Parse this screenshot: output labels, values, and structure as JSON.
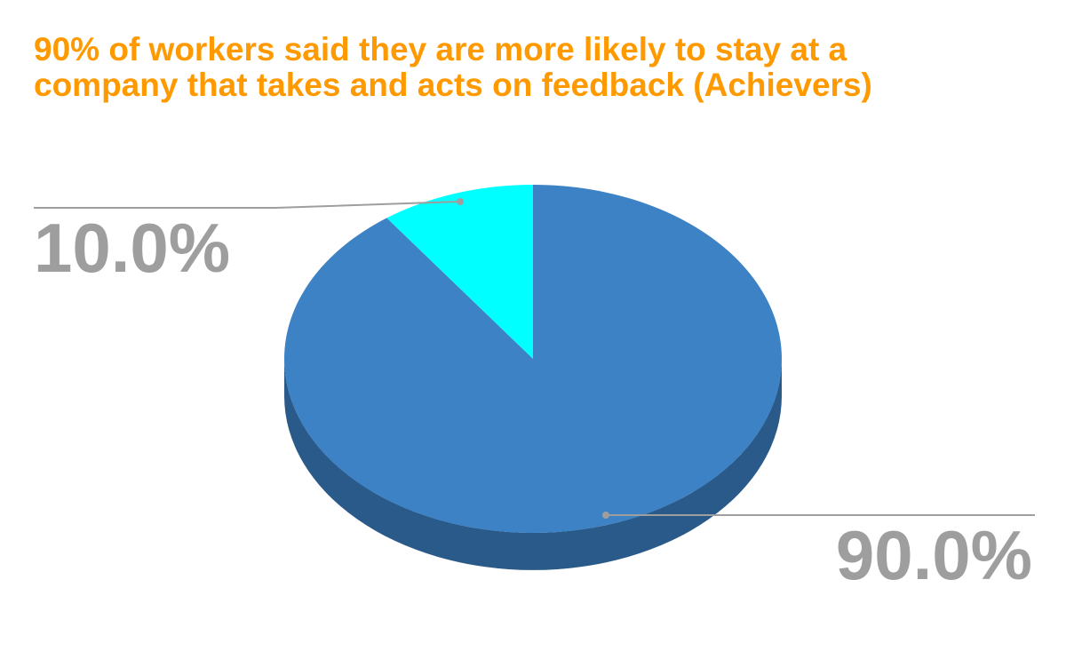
{
  "chart_data": {
    "type": "pie",
    "title": "90% of workers said they are more likely to stay at a company that takes and acts on feedback (Achievers)",
    "title_lines": [
      "90% of workers said they are more likely to stay at a",
      "company that takes and acts on feedback (Achievers)"
    ],
    "is_3d": true,
    "legend": "none",
    "slices": [
      {
        "value": 90.0,
        "label": "90.0%",
        "color": "#3d82c4",
        "side_color": "#2a5a8a"
      },
      {
        "value": 10.0,
        "label": "10.0%",
        "color": "#00ffff",
        "side_color": "#00b3b3"
      }
    ],
    "label_color": "#9e9e9e",
    "leader_color": "#9e9e9e",
    "title_color": "#ff9900"
  }
}
